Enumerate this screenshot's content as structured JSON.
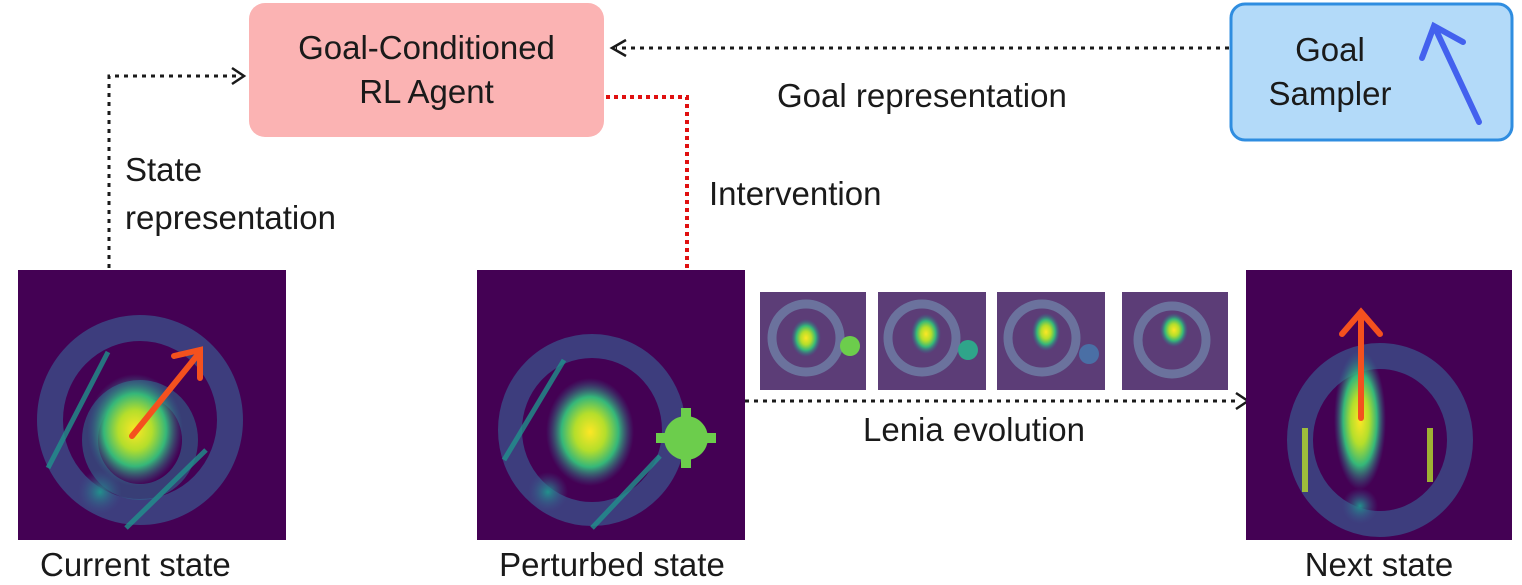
{
  "nodes": {
    "agent": {
      "line1": "Goal-Conditioned",
      "line2": "RL Agent"
    },
    "sampler": {
      "line1": "Goal",
      "line2": "Sampler"
    }
  },
  "edges": {
    "goal_representation": "Goal representation",
    "state_representation_1": "State",
    "state_representation_2": "representation",
    "intervention": "Intervention",
    "lenia_evolution": "Lenia evolution"
  },
  "captions": {
    "current": "Current state",
    "perturbed": "Perturbed state",
    "next": "Next state"
  },
  "colors": {
    "agent_fill": "#fbb3b3",
    "sampler_fill": "#b3daf9",
    "sampler_border": "#2f8de0",
    "state_bg": "#440154",
    "goal_arrow": "#4361ee",
    "direction_arrow": "#f4511e",
    "intervention_arrow": "#e01010",
    "perturbation": "#6ccd4c"
  }
}
